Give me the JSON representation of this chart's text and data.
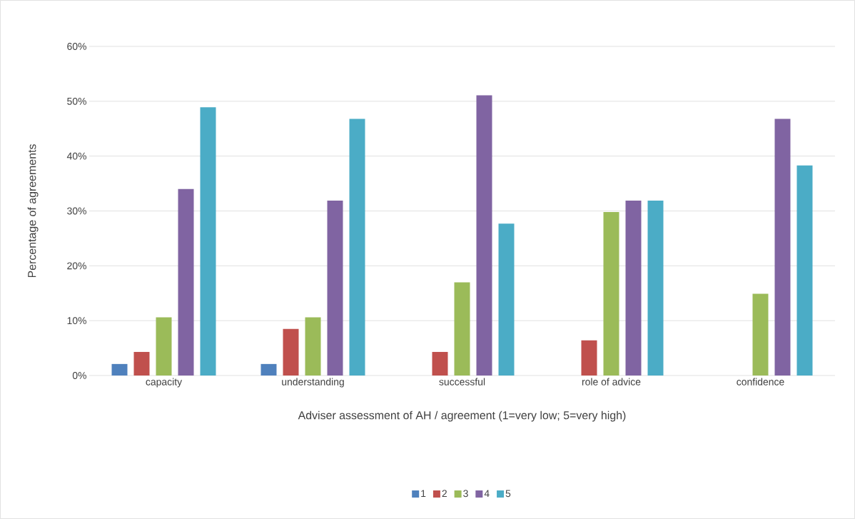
{
  "chart_data": {
    "type": "bar",
    "xlabel": "Adviser assessment of AH / agreement (1=very low; 5=very high)",
    "ylabel": "Percentage of agreements",
    "categories": [
      "capacity",
      "understanding",
      "successful",
      "role of advice",
      "confidence"
    ],
    "series": [
      {
        "name": "1",
        "color": "#4f81bd",
        "values": [
          2.1,
          2.1,
          0,
          0,
          0
        ]
      },
      {
        "name": "2",
        "color": "#c0504d",
        "values": [
          4.3,
          8.5,
          4.3,
          6.4,
          0
        ]
      },
      {
        "name": "3",
        "color": "#9bbb59",
        "values": [
          10.6,
          10.6,
          17.0,
          29.8,
          14.9
        ]
      },
      {
        "name": "4",
        "color": "#8064a2",
        "values": [
          34.0,
          31.9,
          51.1,
          31.9,
          46.8
        ]
      },
      {
        "name": "5",
        "color": "#4bacc6",
        "values": [
          48.9,
          46.8,
          27.7,
          31.9,
          38.3
        ]
      }
    ],
    "ylim": [
      0,
      60
    ],
    "yticks": [
      {
        "value": 0,
        "label": "0%"
      },
      {
        "value": 10,
        "label": "10%"
      },
      {
        "value": 20,
        "label": "20%"
      },
      {
        "value": 30,
        "label": "30%"
      },
      {
        "value": 40,
        "label": "40%"
      },
      {
        "value": 50,
        "label": "50%"
      },
      {
        "value": 60,
        "label": "60%"
      }
    ],
    "grid": "y",
    "legend": "bottom"
  }
}
